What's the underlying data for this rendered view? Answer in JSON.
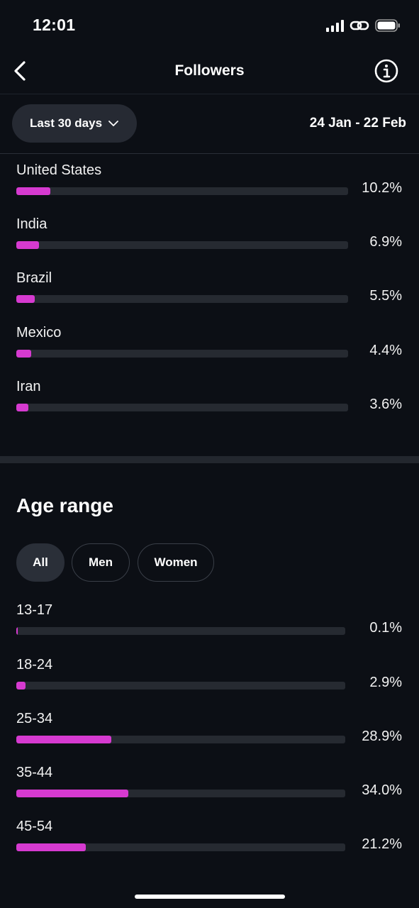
{
  "status_bar": {
    "time": "12:01"
  },
  "header": {
    "title": "Followers"
  },
  "filter": {
    "period_label": "Last 30 days",
    "date_range": "24 Jan - 22 Feb"
  },
  "countries": [
    {
      "label": "United States",
      "value_text": "10.2%",
      "value": 10.2
    },
    {
      "label": "India",
      "value_text": "6.9%",
      "value": 6.9
    },
    {
      "label": "Brazil",
      "value_text": "5.5%",
      "value": 5.5
    },
    {
      "label": "Mexico",
      "value_text": "4.4%",
      "value": 4.4
    },
    {
      "label": "Iran",
      "value_text": "3.6%",
      "value": 3.6
    }
  ],
  "age_range": {
    "title": "Age range",
    "tabs": [
      {
        "label": "All",
        "active": true
      },
      {
        "label": "Men",
        "active": false
      },
      {
        "label": "Women",
        "active": false
      }
    ],
    "items": [
      {
        "label": "13-17",
        "value_text": "0.1%",
        "value": 0.1
      },
      {
        "label": "18-24",
        "value_text": "2.9%",
        "value": 2.9
      },
      {
        "label": "25-34",
        "value_text": "28.9%",
        "value": 28.9
      },
      {
        "label": "35-44",
        "value_text": "34.0%",
        "value": 34.0
      },
      {
        "label": "45-54",
        "value_text": "21.2%",
        "value": 21.2
      }
    ]
  },
  "colors": {
    "accent": "#d63ad0",
    "background": "#0c0f15",
    "track": "#262a31"
  },
  "icons": {
    "back": "chevron-left-icon",
    "info": "info-circle-icon",
    "dropdown": "chevron-down-icon",
    "signal": "signal-icon",
    "link": "link-icon",
    "battery": "battery-icon"
  }
}
